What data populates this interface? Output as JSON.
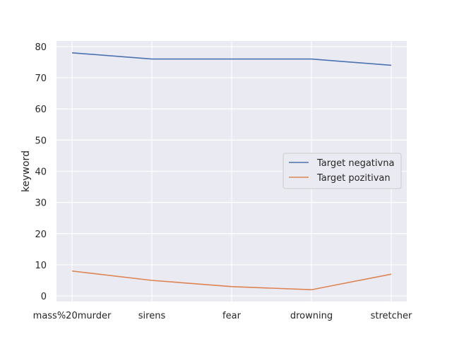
{
  "chart_data": {
    "type": "line",
    "categories": [
      "mass%20murder",
      "sirens",
      "fear",
      "drowning",
      "stretcher"
    ],
    "series": [
      {
        "name": "Target negativna",
        "values": [
          78,
          76,
          76,
          76,
          74
        ],
        "color": "#4c72b0"
      },
      {
        "name": "Target pozitivan",
        "values": [
          8,
          5,
          3,
          2,
          7
        ],
        "color": "#dd8452"
      }
    ],
    "title": "",
    "xlabel": "",
    "ylabel": "keyword",
    "ylim": [
      0,
      80
    ],
    "yticks": [
      0,
      10,
      20,
      30,
      40,
      50,
      60,
      70,
      80
    ],
    "grid": true,
    "legend_position": "center-right",
    "background": "#eaeaf2"
  }
}
